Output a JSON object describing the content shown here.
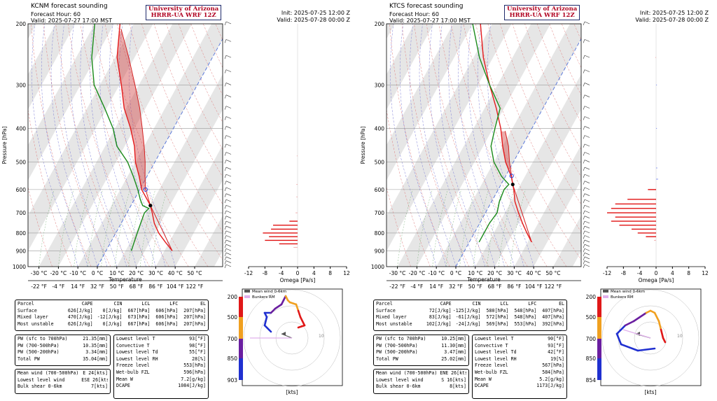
{
  "panels": [
    {
      "station_title": "KCNM forecast sounding",
      "forecast_hour": "Forecast Hour: 60",
      "valid_line": "Valid: 2025-07-27 17:00 MST",
      "university": "University of Arizona",
      "model": "HRRR-UA WRF 12Z",
      "init": "Init: 2025-07-25 12:00 Z",
      "valid_z": "Valid: 2025-07-28 00:00 Z",
      "parcel_table": {
        "header": [
          "Parcel",
          "CAPE",
          "CIN",
          "LCL",
          "LFC",
          "EL"
        ],
        "rows": [
          [
            "Surface",
            "626[J/kg]",
            "0[J/kg]",
            "667[hPa]",
            "606[hPa]",
            "207[hPa]"
          ],
          [
            "Mixed layer",
            "470[J/kg]",
            "-12[J/kg]",
            "673[hPa]",
            "606[hPa]",
            "207[hPa]"
          ],
          [
            "Most unstable",
            "626[J/kg]",
            "0[J/kg]",
            "667[hPa]",
            "606[hPa]",
            "207[hPa]"
          ]
        ]
      },
      "pw_table": [
        [
          "PW (sfc to 700hPa)",
          "21.35[mm]"
        ],
        [
          "PW (700-500hPa)",
          "10.35[mm]"
        ],
        [
          "PW (500-200hPa)",
          "3.34[mm]"
        ],
        [
          "Total PW",
          "35.04[mm]"
        ]
      ],
      "wind_table": [
        [
          "Mean wind (700-500hPa)",
          "E  24[kts]"
        ],
        [
          "Lowest level wind",
          "ESE  26[kts]"
        ],
        [
          "Bulk shear 0-6km",
          "7[kts]"
        ]
      ],
      "level_table": [
        [
          "Lowest level T",
          "93[°F]"
        ],
        [
          "Convective T",
          "98[°F]"
        ],
        [
          "Lowest level Td",
          "55[°F]"
        ],
        [
          "Lowest level RH",
          "28[%]"
        ],
        [
          "Freeze level",
          "553[hPa]"
        ],
        [
          "Wet-bulb FZL",
          "596[hPa]"
        ],
        [
          "Mean W",
          "7.2[g/kg]"
        ],
        [
          "DCAPE",
          "1084[J/kg]"
        ]
      ],
      "hodo_colorbar_labels": [
        "200",
        "500",
        "700",
        "850",
        "903"
      ]
    },
    {
      "station_title": "KTCS forecast sounding",
      "forecast_hour": "Forecast Hour: 60",
      "valid_line": "Valid: 2025-07-27 17:00 MST",
      "university": "University of Arizona",
      "model": "HRRR-UA WRF 12Z",
      "init": "Init: 2025-07-25 12:00 Z",
      "valid_z": "Valid: 2025-07-28 00:00 Z",
      "parcel_table": {
        "header": [
          "Parcel",
          "CAPE",
          "CIN",
          "LCL",
          "LFC",
          "EL"
        ],
        "rows": [
          [
            "Surface",
            "72[J/kg]",
            "-125[J/kg]",
            "580[hPa]",
            "548[hPa]",
            "407[hPa]"
          ],
          [
            "Mixed layer",
            "83[J/kg]",
            "-61[J/kg]",
            "572[hPa]",
            "548[hPa]",
            "407[hPa]"
          ],
          [
            "Most unstable",
            "102[J/kg]",
            "-24[J/kg]",
            "569[hPa]",
            "553[hPa]",
            "392[hPa]"
          ]
        ]
      },
      "pw_table": [
        [
          "PW (sfc to 700hPa)",
          "10.25[mm]"
        ],
        [
          "PW (700-500hPa)",
          "11.30[mm]"
        ],
        [
          "PW (500-200hPa)",
          "3.47[mm]"
        ],
        [
          "Total PW",
          "25.02[mm]"
        ]
      ],
      "wind_table": [
        [
          "Mean wind (700-500hPa)",
          "ENE  26[kts]"
        ],
        [
          "Lowest level wind",
          "S  16[kts]"
        ],
        [
          "Bulk shear 0-6km",
          "8[kts]"
        ]
      ],
      "level_table": [
        [
          "Lowest level T",
          "90[°F]"
        ],
        [
          "Convective T",
          "93[°F]"
        ],
        [
          "Lowest level Td",
          "42[°F]"
        ],
        [
          "Lowest level RH",
          "19[%]"
        ],
        [
          "Freeze level",
          "567[hPa]"
        ],
        [
          "Wet-bulb FZL",
          "584[hPa]"
        ],
        [
          "Mean W",
          "5.2[g/kg]"
        ],
        [
          "DCAPE",
          "1173[J/kg]"
        ]
      ],
      "hodo_colorbar_labels": [
        "200",
        "500",
        "700",
        "850",
        "854"
      ]
    }
  ],
  "chart_data": [
    {
      "type": "line",
      "title": "KCNM forecast sounding",
      "xlabel": "Temperature",
      "ylabel": "Pressure [hPa]",
      "pressure_ticks": [
        200,
        300,
        400,
        500,
        600,
        700,
        800,
        900,
        1000
      ],
      "pressure_labels": [
        "200",
        "300",
        "400",
        "500",
        "600",
        "700",
        "800",
        "900",
        "1000"
      ],
      "temp_ticks_c": [
        -30,
        -20,
        -10,
        0,
        10,
        20,
        30,
        40,
        50
      ],
      "temp_labels_c": [
        "-30 °C",
        "-20 °C",
        "-10 °C",
        "0 °C",
        "10 °C",
        "20 °C",
        "30 °C",
        "40 °C",
        "50 °C"
      ],
      "temp_labels_f": [
        "-22 °F",
        "-4 °F",
        "14 °F",
        "32 °F",
        "50 °F",
        "68 °F",
        "86 °F",
        "104 °F",
        "122 °F"
      ],
      "series": [
        {
          "name": "Temperature",
          "color": "#e41a1c",
          "points": [
            [
              900,
              34
            ],
            [
              850,
              28
            ],
            [
              800,
              22
            ],
            [
              750,
              17
            ],
            [
              700,
              13
            ],
            [
              667,
              10
            ],
            [
              600,
              1
            ],
            [
              550,
              -4
            ],
            [
              500,
              -10
            ],
            [
              450,
              -15
            ],
            [
              400,
              -22
            ],
            [
              350,
              -31
            ],
            [
              300,
              -39
            ],
            [
              250,
              -49
            ],
            [
              200,
              -57
            ]
          ]
        },
        {
          "name": "Dewpoint",
          "color": "#1a8a1a",
          "points": [
            [
              900,
              13
            ],
            [
              850,
              12
            ],
            [
              800,
              11
            ],
            [
              750,
              10
            ],
            [
              700,
              9
            ],
            [
              680,
              10
            ],
            [
              667,
              6
            ],
            [
              640,
              3
            ],
            [
              600,
              -1
            ],
            [
              550,
              -7
            ],
            [
              500,
              -14
            ],
            [
              450,
              -24
            ],
            [
              400,
              -31
            ],
            [
              350,
              -41
            ],
            [
              300,
              -53
            ],
            [
              250,
              -62
            ],
            [
              200,
              -70
            ]
          ]
        },
        {
          "name": "Parcel",
          "color": "#e41a1c",
          "points": [
            [
              900,
              34
            ],
            [
              667,
              10
            ],
            [
              600,
              3
            ],
            [
              550,
              -1
            ],
            [
              500,
              -5
            ],
            [
              450,
              -10
            ],
            [
              400,
              -16
            ],
            [
              350,
              -23
            ],
            [
              300,
              -32
            ],
            [
              250,
              -43
            ],
            [
              207,
              -55
            ]
          ]
        }
      ],
      "omega": {
        "xlabel": "Omega [Pa/s]",
        "xticks": [
          -12,
          -8,
          -4,
          0,
          4,
          8,
          12
        ],
        "xtick_labels": [
          "-12",
          "-8",
          "-4",
          "0",
          "4",
          "8",
          "12"
        ],
        "bars": [
          [
            880,
            -1
          ],
          [
            860,
            -4.5
          ],
          [
            840,
            -8
          ],
          [
            820,
            -7
          ],
          [
            800,
            -8.5
          ],
          [
            780,
            -6.5
          ],
          [
            760,
            -6
          ],
          [
            740,
            -2
          ],
          [
            700,
            -0.5
          ],
          [
            630,
            -0.3
          ],
          [
            580,
            -0.3
          ],
          [
            480,
            -0.2
          ]
        ]
      },
      "hodograph": {
        "xlabel": "[kts]",
        "ring_label": "10",
        "legend": [
          "Mean wind 0-6km",
          "Bunkers RM"
        ],
        "trace": [
          [
            -10,
            3
          ],
          [
            -13,
            6
          ],
          [
            -12,
            10
          ],
          [
            -13,
            12
          ],
          [
            -10,
            12
          ],
          [
            -8,
            14
          ],
          [
            -5,
            16
          ],
          [
            -4,
            18
          ],
          [
            -3,
            20
          ],
          [
            -2,
            18
          ],
          [
            -1,
            17
          ],
          [
            2,
            16
          ],
          [
            3,
            13
          ],
          [
            4,
            10
          ],
          [
            6,
            6
          ],
          [
            3,
            5
          ]
        ],
        "mean_wind": [
          -5,
          2
        ],
        "bunkers_rm": [
          -20,
          0
        ]
      }
    },
    {
      "type": "line",
      "title": "KTCS forecast sounding",
      "xlabel": "Temperature",
      "ylabel": "Pressure [hPa]",
      "pressure_ticks": [
        200,
        300,
        400,
        500,
        600,
        700,
        800,
        900,
        1000
      ],
      "pressure_labels": [
        "200",
        "300",
        "400",
        "500",
        "600",
        "700",
        "800",
        "900",
        "1000"
      ],
      "temp_ticks_c": [
        -30,
        -20,
        -10,
        0,
        10,
        20,
        30,
        40,
        50
      ],
      "temp_labels_c": [
        "-30 °C",
        "-20 °C",
        "-10 °C",
        "0 °C",
        "10 °C",
        "20 °C",
        "30 °C",
        "40 °C",
        "50 °C"
      ],
      "temp_labels_f": [
        "-22 °F",
        "-4 °F",
        "14 °F",
        "32 °F",
        "50 °F",
        "68 °F",
        "86 °F",
        "104 °F",
        "122 °F"
      ],
      "series": [
        {
          "name": "Temperature",
          "color": "#e41a1c",
          "points": [
            [
              850,
              32
            ],
            [
              800,
              27
            ],
            [
              750,
              22
            ],
            [
              700,
              17
            ],
            [
              650,
              12
            ],
            [
              600,
              8
            ],
            [
              580,
              6
            ],
            [
              550,
              3
            ],
            [
              500,
              -4
            ],
            [
              450,
              -10
            ],
            [
              400,
              -16
            ],
            [
              350,
              -24
            ],
            [
              300,
              -34
            ],
            [
              250,
              -45
            ],
            [
              200,
              -56
            ]
          ]
        },
        {
          "name": "Dewpoint",
          "color": "#1a8a1a",
          "points": [
            [
              850,
              5
            ],
            [
              800,
              5
            ],
            [
              750,
              5
            ],
            [
              700,
              6
            ],
            [
              650,
              4
            ],
            [
              600,
              3
            ],
            [
              580,
              4
            ],
            [
              550,
              -2
            ],
            [
              500,
              -10
            ],
            [
              450,
              -16
            ],
            [
              400,
              -19
            ],
            [
              350,
              -22
            ],
            [
              300,
              -34
            ],
            [
              250,
              -47
            ],
            [
              200,
              -60
            ]
          ]
        },
        {
          "name": "Parcel",
          "color": "#e41a1c",
          "points": [
            [
              850,
              32
            ],
            [
              580,
              6
            ],
            [
              548,
              3
            ],
            [
              500,
              -2
            ],
            [
              450,
              -7
            ],
            [
              407,
              -13
            ]
          ]
        }
      ],
      "omega": {
        "xlabel": "Omega [Pa/s]",
        "xticks": [
          -12,
          -8,
          -4,
          0,
          4,
          8,
          12
        ],
        "xtick_labels": [
          "-12",
          "-8",
          "-4",
          "0",
          "4",
          "8",
          "12"
        ],
        "bars": [
          [
            840,
            -0.5
          ],
          [
            820,
            -2.5
          ],
          [
            800,
            -4.5
          ],
          [
            780,
            -6
          ],
          [
            760,
            -9
          ],
          [
            740,
            -11
          ],
          [
            720,
            -10
          ],
          [
            700,
            -12
          ],
          [
            680,
            -11
          ],
          [
            660,
            -10
          ],
          [
            640,
            -7
          ],
          [
            600,
            -2
          ],
          [
            560,
            0.5
          ],
          [
            520,
            0.3
          ],
          [
            400,
            0.2
          ],
          [
            300,
            0.2
          ],
          [
            250,
            -0.2
          ]
        ]
      },
      "hodograph": {
        "xlabel": "[kts]",
        "ring_label": "10",
        "legend": [
          "Mean wind 0-6km",
          "Bunkers RM"
        ],
        "trace": [
          [
            2,
            -5
          ],
          [
            -6,
            -6
          ],
          [
            -14,
            -3
          ],
          [
            -16,
            2
          ],
          [
            -12,
            6
          ],
          [
            -8,
            8
          ],
          [
            -5,
            10
          ],
          [
            -2,
            12
          ],
          [
            0,
            13
          ],
          [
            2,
            12
          ],
          [
            4,
            8
          ],
          [
            5,
            4
          ],
          [
            6,
            0
          ],
          [
            7,
            -2
          ]
        ],
        "mean_wind": [
          -7,
          2
        ],
        "bunkers_rm": [
          -13,
          4
        ]
      }
    }
  ]
}
